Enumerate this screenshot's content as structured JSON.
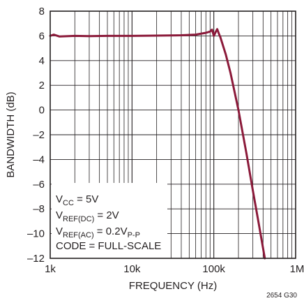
{
  "chart_data": {
    "type": "line",
    "title": "",
    "xlabel": "FREQUENCY (Hz)",
    "ylabel": "BANDWIDTH (dB)",
    "x_scale": "log",
    "xlim": [
      1000,
      1000000
    ],
    "ylim": [
      -12,
      8
    ],
    "x_ticks": [
      1000,
      10000,
      100000,
      1000000
    ],
    "x_tick_labels": [
      "1k",
      "10k",
      "100k",
      "1M"
    ],
    "y_ticks": [
      -12,
      -10,
      -8,
      -6,
      -4,
      -2,
      0,
      2,
      4,
      6,
      8
    ],
    "y_tick_labels": [
      "–12",
      "–10",
      "–8",
      "–6",
      "–4",
      "–2",
      "0",
      "2",
      "4",
      "6",
      "8"
    ],
    "grid": true,
    "series": [
      {
        "color": "#8b1a3a",
        "x": [
          1000,
          1100,
          1300,
          2000,
          3000,
          5000,
          10000,
          20000,
          40000,
          60000,
          80000,
          90000,
          95000,
          100000,
          105000,
          110000,
          115000,
          120000,
          140000,
          160000,
          200000,
          250000,
          300000,
          350000,
          420000
        ],
        "y": [
          6.0,
          6.1,
          5.95,
          6.0,
          5.98,
          6.0,
          6.0,
          6.02,
          6.05,
          6.1,
          6.25,
          6.35,
          6.5,
          6.0,
          6.3,
          6.55,
          6.2,
          5.9,
          4.5,
          3.0,
          0.0,
          -3.5,
          -6.5,
          -9.0,
          -12.0
        ]
      }
    ],
    "annotation": {
      "vcc": {
        "main": "V",
        "sub": "CC",
        "rest": " = 5V"
      },
      "vref_dc": {
        "main": "V",
        "sub": "REF(DC)",
        "rest": " = 2V"
      },
      "vref_ac": {
        "main": "V",
        "sub": "REF(AC)",
        "rest": " = 0.2V",
        "sub2": "P-P"
      },
      "code": "CODE = FULL-SCALE"
    },
    "figure_id": "2654 G30"
  }
}
